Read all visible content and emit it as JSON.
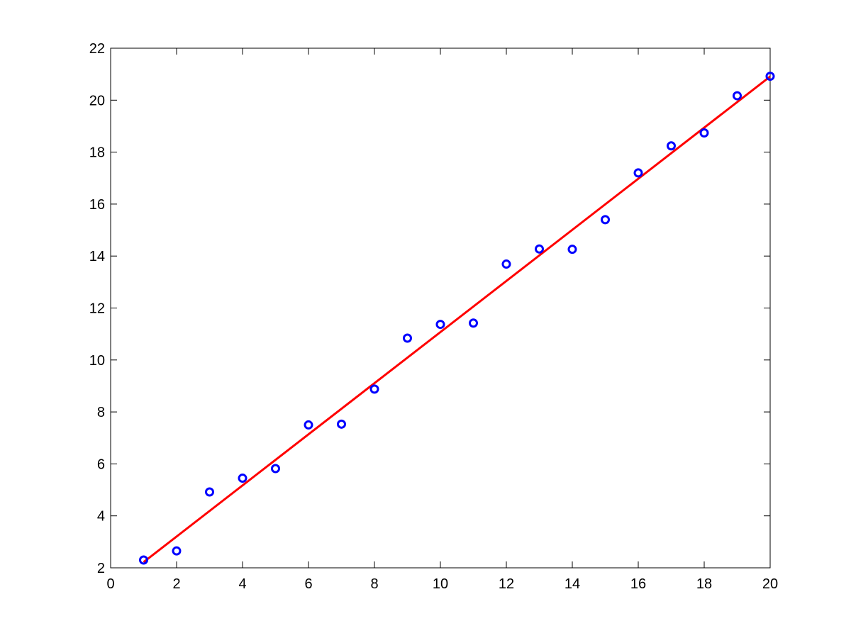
{
  "chart_data": {
    "type": "scatter",
    "title": "",
    "xlabel": "",
    "ylabel": "",
    "xlim": [
      0,
      20
    ],
    "ylim": [
      2,
      22
    ],
    "xticks": [
      "0",
      "2",
      "4",
      "6",
      "8",
      "10",
      "12",
      "14",
      "16",
      "18",
      "20"
    ],
    "yticks": [
      "2",
      "4",
      "6",
      "8",
      "10",
      "12",
      "14",
      "16",
      "18",
      "20",
      "22"
    ],
    "grid": false,
    "legend": "none",
    "series": [
      {
        "marker": "circle",
        "color": "#0000ff",
        "x": [
          1,
          2,
          3,
          4,
          5,
          6,
          7,
          8,
          9,
          10,
          11,
          12,
          13,
          14,
          15,
          16,
          17,
          18,
          19,
          20
        ],
        "y": [
          2.3,
          2.65,
          4.92,
          5.45,
          5.82,
          7.5,
          7.53,
          8.88,
          10.84,
          11.37,
          11.42,
          13.69,
          14.27,
          14.26,
          15.4,
          17.2,
          18.24,
          18.74,
          20.17,
          20.92
        ]
      }
    ],
    "fit_line": {
      "color": "#ff0000",
      "x": [
        1,
        20
      ],
      "y": [
        2.22,
        20.91
      ]
    }
  }
}
